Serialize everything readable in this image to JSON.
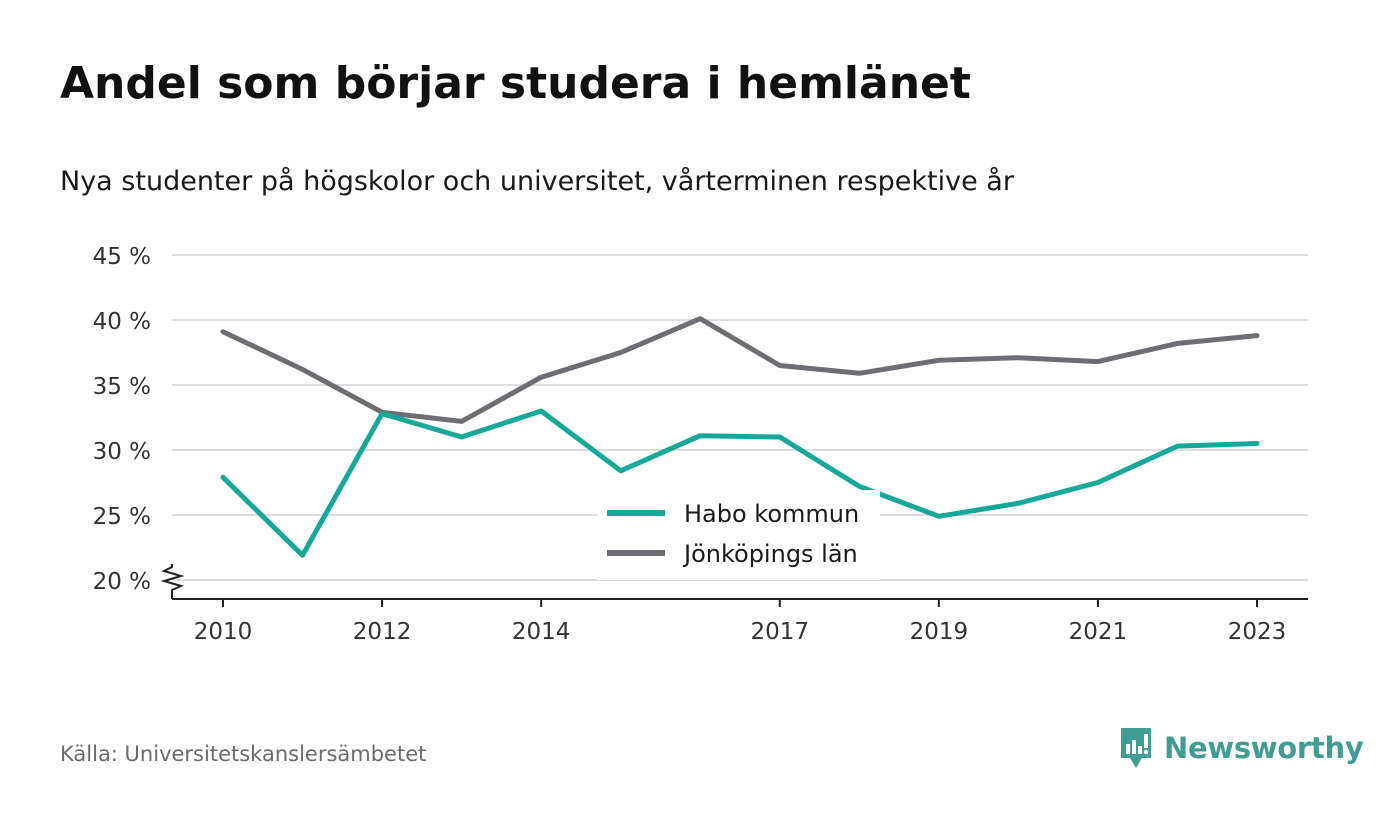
{
  "title": "Andel som börjar studera i hemlänet",
  "subtitle": "Nya studenter på högskolor och universitet, vårterminen respektive år",
  "source": "Källa: Universitetskanslersämbetet",
  "brand": "Newsworthy",
  "colors": {
    "habo": "#16a89b",
    "jonkoping": "#6e6d74",
    "grid": "#dddddd",
    "axis": "#222222",
    "brand": "#3f9d93"
  },
  "chart_data": {
    "type": "line",
    "title": "Andel som börjar studera i hemlänet",
    "subtitle": "Nya studenter på högskolor och universitet, vårterminen respektive år",
    "x": [
      2010,
      2011,
      2012,
      2013,
      2014,
      2015,
      2016,
      2017,
      2018,
      2019,
      2020,
      2021,
      2022,
      2023
    ],
    "x_tick_labels": [
      "2010",
      "2012",
      "2014",
      "2017",
      "2019",
      "2021",
      "2023"
    ],
    "y_tick_labels": [
      "20 %",
      "25 %",
      "30 %",
      "35 %",
      "40 %",
      "45 %"
    ],
    "y_ticks": [
      20,
      25,
      30,
      35,
      40,
      45
    ],
    "ylim": [
      20,
      45
    ],
    "xlim": [
      2010,
      2023
    ],
    "grid": true,
    "legend_position": "bottom-center",
    "series": [
      {
        "name": "Habo kommun",
        "color": "#16a89b",
        "values": [
          27.9,
          21.9,
          32.8,
          31.0,
          33.0,
          28.4,
          31.1,
          31.0,
          27.2,
          24.9,
          25.9,
          27.5,
          30.3,
          30.5
        ]
      },
      {
        "name": "Jönköpings län",
        "color": "#6e6d74",
        "values": [
          39.1,
          36.2,
          32.9,
          32.2,
          35.6,
          37.5,
          40.1,
          36.5,
          35.9,
          36.9,
          37.1,
          36.8,
          38.2,
          38.8
        ]
      }
    ]
  }
}
